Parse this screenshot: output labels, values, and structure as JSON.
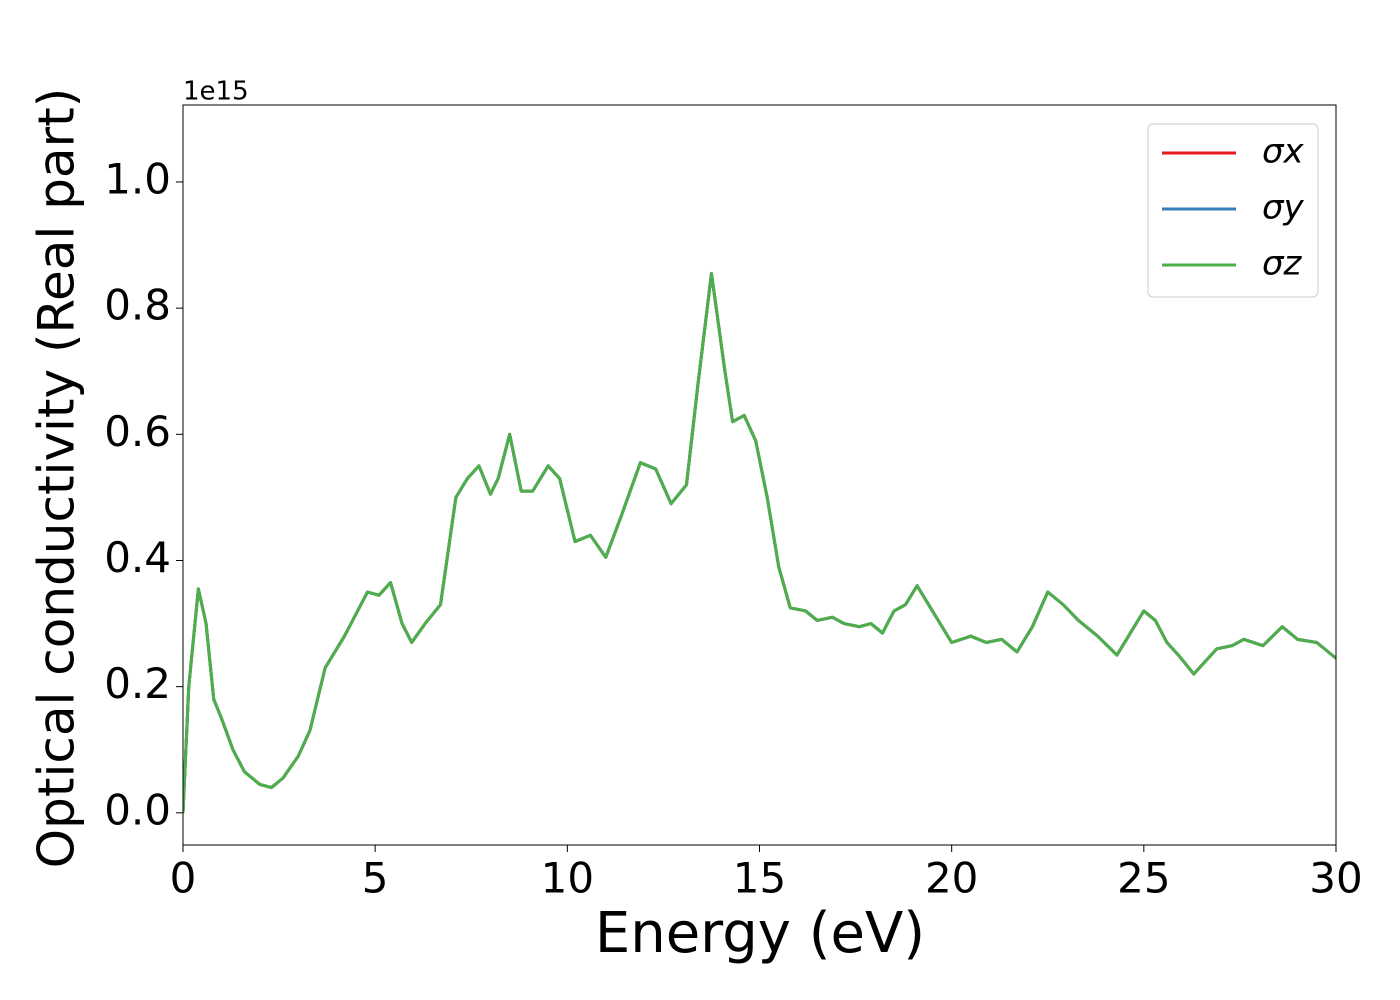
{
  "chart_data": {
    "type": "line",
    "x_label": "Energy (eV)",
    "y_label": "Optical conductivity (Real part)",
    "y_offset_label": "1e15",
    "xlim": [
      0,
      30
    ],
    "xticks": [
      0,
      5,
      10,
      15,
      20,
      25,
      30
    ],
    "ylim": [
      -0.051,
      1.122
    ],
    "yticks": [
      {
        "value": 0,
        "label": "0.0"
      },
      0.2,
      0.4,
      0.6,
      0.8,
      {
        "value": 1,
        "label": "1.0"
      }
    ],
    "legend": "upper right",
    "x": [
      0,
      0.15,
      0.4,
      0.6,
      0.8,
      1.0,
      1.3,
      1.6,
      2.0,
      2.3,
      2.6,
      3.0,
      3.3,
      3.7,
      4.2,
      4.8,
      5.1,
      5.4,
      5.7,
      5.95,
      6.3,
      6.7,
      7.1,
      7.4,
      7.7,
      8.0,
      8.2,
      8.5,
      8.8,
      9.1,
      9.5,
      9.8,
      10.2,
      10.6,
      11.0,
      11.4,
      11.9,
      12.3,
      12.7,
      13.1,
      13.4,
      13.75,
      14.1,
      14.3,
      14.6,
      14.9,
      15.2,
      15.5,
      15.8,
      16.2,
      16.5,
      16.9,
      17.2,
      17.6,
      17.9,
      18.2,
      18.5,
      18.8,
      19.1,
      19.5,
      20.0,
      20.5,
      20.9,
      21.3,
      21.7,
      22.1,
      22.5,
      22.9,
      23.3,
      23.8,
      24.3,
      24.6,
      25.0,
      25.3,
      25.6,
      25.9,
      26.3,
      26.9,
      27.3,
      27.6,
      28.1,
      28.6,
      29.0,
      29.5,
      30.0
    ],
    "series": [
      {
        "name": "σx",
        "color": "#e41a1c",
        "values": [
          0,
          0.2,
          0.355,
          0.3,
          0.18,
          0.15,
          0.1,
          0.065,
          0.045,
          0.04,
          0.055,
          0.09,
          0.13,
          0.23,
          0.28,
          0.35,
          0.345,
          0.365,
          0.3,
          0.27,
          0.3,
          0.33,
          0.5,
          0.53,
          0.55,
          0.505,
          0.53,
          0.6,
          0.51,
          0.51,
          0.55,
          0.53,
          0.43,
          0.44,
          0.405,
          0.47,
          0.555,
          0.545,
          0.49,
          0.52,
          0.68,
          0.855,
          0.7,
          0.62,
          0.63,
          0.59,
          0.5,
          0.39,
          0.325,
          0.32,
          0.305,
          0.31,
          0.3,
          0.295,
          0.3,
          0.285,
          0.32,
          0.33,
          0.36,
          0.32,
          0.27,
          0.28,
          0.27,
          0.275,
          0.255,
          0.295,
          0.35,
          0.33,
          0.305,
          0.28,
          0.25,
          0.28,
          0.32,
          0.305,
          0.27,
          0.25,
          0.22,
          0.26,
          0.265,
          0.275,
          0.265,
          0.295,
          0.275,
          0.27,
          0.245
        ]
      },
      {
        "name": "σy",
        "color": "#377eb8",
        "values": [
          0,
          0.2,
          0.355,
          0.3,
          0.18,
          0.15,
          0.1,
          0.065,
          0.045,
          0.04,
          0.055,
          0.09,
          0.13,
          0.23,
          0.28,
          0.35,
          0.345,
          0.365,
          0.3,
          0.27,
          0.3,
          0.33,
          0.5,
          0.53,
          0.55,
          0.505,
          0.53,
          0.6,
          0.51,
          0.51,
          0.55,
          0.53,
          0.43,
          0.44,
          0.405,
          0.47,
          0.555,
          0.545,
          0.49,
          0.52,
          0.68,
          0.855,
          0.7,
          0.62,
          0.63,
          0.59,
          0.5,
          0.39,
          0.325,
          0.32,
          0.305,
          0.31,
          0.3,
          0.295,
          0.3,
          0.285,
          0.32,
          0.33,
          0.36,
          0.32,
          0.27,
          0.28,
          0.27,
          0.275,
          0.255,
          0.295,
          0.35,
          0.33,
          0.305,
          0.28,
          0.25,
          0.28,
          0.32,
          0.305,
          0.27,
          0.25,
          0.22,
          0.26,
          0.265,
          0.275,
          0.265,
          0.295,
          0.275,
          0.27,
          0.245
        ]
      },
      {
        "name": "σz",
        "color": "#4daf4a",
        "values": [
          0,
          0.2,
          0.355,
          0.3,
          0.18,
          0.15,
          0.1,
          0.065,
          0.045,
          0.04,
          0.055,
          0.09,
          0.13,
          0.23,
          0.28,
          0.35,
          0.345,
          0.365,
          0.3,
          0.27,
          0.3,
          0.33,
          0.5,
          0.53,
          0.55,
          0.505,
          0.53,
          0.6,
          0.51,
          0.51,
          0.55,
          0.53,
          0.43,
          0.44,
          0.405,
          0.47,
          0.555,
          0.545,
          0.49,
          0.52,
          0.68,
          0.855,
          0.7,
          0.62,
          0.63,
          0.59,
          0.5,
          0.39,
          0.325,
          0.32,
          0.305,
          0.31,
          0.3,
          0.295,
          0.3,
          0.285,
          0.32,
          0.33,
          0.36,
          0.32,
          0.27,
          0.28,
          0.27,
          0.275,
          0.255,
          0.295,
          0.35,
          0.33,
          0.305,
          0.28,
          0.25,
          0.28,
          0.32,
          0.305,
          0.27,
          0.25,
          0.22,
          0.26,
          0.265,
          0.275,
          0.265,
          0.295,
          0.275,
          0.27,
          0.245
        ]
      }
    ]
  }
}
